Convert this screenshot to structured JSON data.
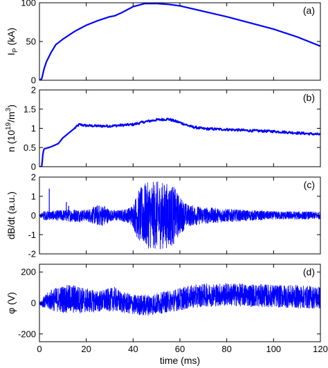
{
  "chart_data": [
    {
      "type": "line",
      "panel_label": "(a)",
      "ylabel": "I",
      "ylabel_sub": "P",
      "ylabel_unit": " (kA)",
      "ylim": [
        0,
        100
      ],
      "yticks": [
        0,
        50,
        100
      ],
      "xlim": [
        0,
        120
      ],
      "color": "#0000ff",
      "series": [
        {
          "x": [
            0,
            1,
            2,
            3,
            5,
            7,
            10,
            15,
            20,
            25,
            30,
            32,
            35,
            40,
            45,
            50,
            55,
            60,
            70,
            80,
            90,
            100,
            110,
            120
          ],
          "y": [
            0,
            2,
            15,
            24,
            36,
            46,
            53,
            63,
            71,
            77,
            82,
            83,
            87,
            95,
            99,
            99,
            98,
            96,
            89,
            82,
            74,
            66,
            56,
            44
          ]
        }
      ]
    },
    {
      "type": "line",
      "panel_label": "(b)",
      "ylabel": "n (10",
      "ylabel_sup": "19",
      "ylabel_mid": "/m",
      "ylabel_sup2": "3",
      "ylabel_end": ")",
      "ylim": [
        0,
        2
      ],
      "yticks": [
        0,
        0.5,
        1,
        1.5,
        2
      ],
      "xlim": [
        0,
        120
      ],
      "color": "#0000ff",
      "series": [
        {
          "x": [
            0,
            1,
            1.5,
            2,
            3,
            5,
            8,
            10,
            13,
            15,
            17,
            20,
            25,
            30,
            35,
            40,
            45,
            50,
            55,
            60,
            65,
            70,
            80,
            90,
            100,
            110,
            120
          ],
          "y": [
            0,
            0,
            0.35,
            0.47,
            0.48,
            0.52,
            0.6,
            0.75,
            0.9,
            1.0,
            1.1,
            1.07,
            1.06,
            1.06,
            1.08,
            1.1,
            1.17,
            1.22,
            1.24,
            1.15,
            1.04,
            0.99,
            0.97,
            0.94,
            0.92,
            0.88,
            0.84
          ]
        }
      ]
    },
    {
      "type": "line",
      "panel_label": "(c)",
      "ylabel": "dB/dt (a.u.)",
      "ylim": [
        -2,
        2
      ],
      "yticks": [
        -2,
        -1,
        0,
        1,
        2
      ],
      "xlim": [
        0,
        120
      ],
      "color": "#0000ff",
      "envelope": {
        "x": [
          0,
          2,
          5,
          10,
          15,
          20,
          25,
          28,
          30,
          35,
          38,
          40,
          42,
          45,
          50,
          55,
          57,
          60,
          63,
          65,
          70,
          80,
          90,
          100,
          110,
          120
        ],
        "amp": [
          0.05,
          0.25,
          0.25,
          0.3,
          0.35,
          0.3,
          0.55,
          0.55,
          0.3,
          0.3,
          0.4,
          0.6,
          1.3,
          1.7,
          1.8,
          1.7,
          1.6,
          1.0,
          0.6,
          0.55,
          0.45,
          0.35,
          0.28,
          0.22,
          0.22,
          0.2
        ]
      },
      "spikes": [
        {
          "x": 4.2,
          "y": 1.4
        },
        {
          "x": 11.5,
          "y": 0.7
        },
        {
          "x": 12.5,
          "y": 0.5
        }
      ]
    },
    {
      "type": "line",
      "panel_label": "(d)",
      "ylabel": "φ (V)",
      "ylim": [
        -250,
        250
      ],
      "yticks": [
        -200,
        0,
        200
      ],
      "xlim": [
        0,
        120
      ],
      "xticks": [
        0,
        20,
        40,
        60,
        80,
        100,
        120
      ],
      "xlabel": "time (ms)",
      "color": "#0000ff",
      "envelope": {
        "x": [
          0,
          2,
          5,
          10,
          15,
          20,
          25,
          30,
          32,
          35,
          40,
          45,
          50,
          55,
          60,
          65,
          70,
          80,
          90,
          100,
          110,
          120
        ],
        "center": [
          0,
          5,
          20,
          25,
          25,
          15,
          10,
          20,
          25,
          5,
          -10,
          -15,
          -5,
          10,
          25,
          40,
          50,
          55,
          50,
          45,
          40,
          35
        ],
        "amp": [
          10,
          40,
          70,
          90,
          95,
          80,
          70,
          75,
          80,
          70,
          65,
          70,
          70,
          70,
          75,
          75,
          75,
          75,
          75,
          75,
          75,
          75
        ]
      }
    }
  ]
}
